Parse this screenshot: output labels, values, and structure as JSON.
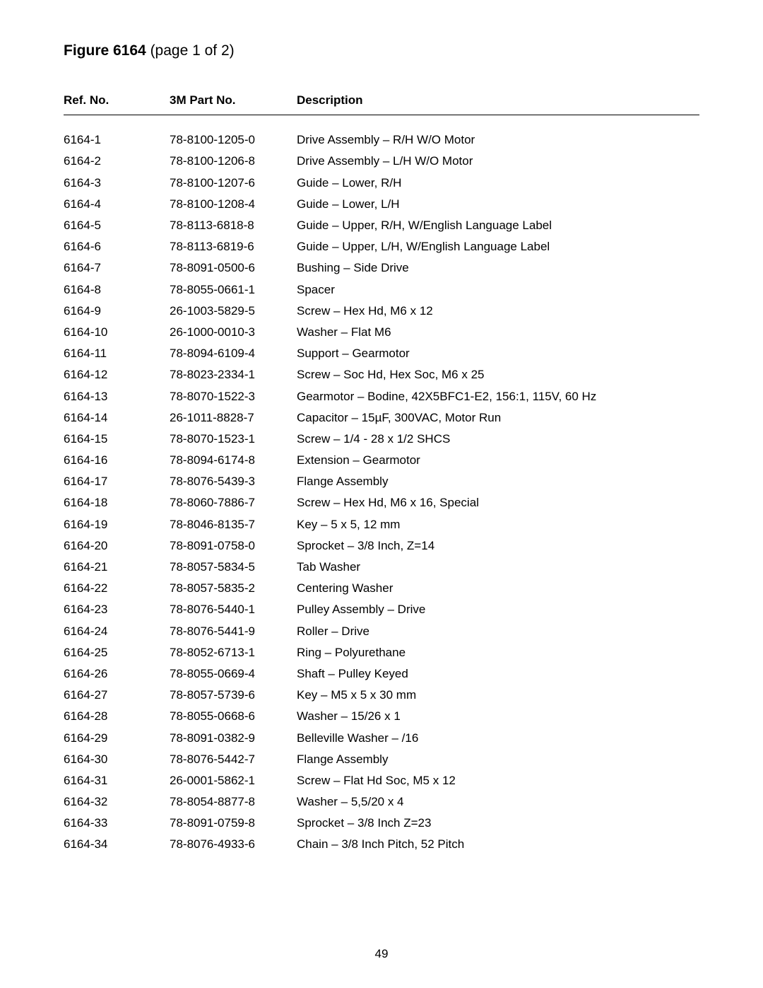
{
  "title": {
    "bold": "Figure 6164",
    "rest": " (page 1 of 2)"
  },
  "columns": {
    "ref": "Ref. No.",
    "part": "3M Part No.",
    "desc": "Description"
  },
  "rows": [
    {
      "ref": "6164-1",
      "part": "78-8100-1205-0",
      "desc": "Drive Assembly – R/H W/O Motor"
    },
    {
      "ref": "6164-2",
      "part": "78-8100-1206-8",
      "desc": "Drive Assembly – L/H W/O Motor"
    },
    {
      "ref": "6164-3",
      "part": "78-8100-1207-6",
      "desc": "Guide – Lower, R/H"
    },
    {
      "ref": "6164-4",
      "part": "78-8100-1208-4",
      "desc": "Guide – Lower, L/H"
    },
    {
      "ref": "6164-5",
      "part": "78-8113-6818-8",
      "desc": "Guide – Upper, R/H, W/English Language Label"
    },
    {
      "ref": "6164-6",
      "part": "78-8113-6819-6",
      "desc": "Guide – Upper, L/H, W/English Language Label"
    },
    {
      "ref": "6164-7",
      "part": "78-8091-0500-6",
      "desc": "Bushing – Side Drive"
    },
    {
      "ref": "6164-8",
      "part": "78-8055-0661-1",
      "desc": "Spacer"
    },
    {
      "ref": "6164-9",
      "part": "26-1003-5829-5",
      "desc": "Screw – Hex Hd, M6 x 12"
    },
    {
      "ref": "6164-10",
      "part": "26-1000-0010-3",
      "desc": "Washer – Flat M6"
    },
    {
      "ref": "6164-11",
      "part": "78-8094-6109-4",
      "desc": "Support – Gearmotor"
    },
    {
      "ref": "6164-12",
      "part": "78-8023-2334-1",
      "desc": "Screw – Soc Hd, Hex Soc, M6 x 25"
    },
    {
      "ref": "6164-13",
      "part": "78-8070-1522-3",
      "desc": "Gearmotor – Bodine, 42X5BFC1-E2, 156:1, 115V, 60 Hz"
    },
    {
      "ref": "6164-14",
      "part": "26-1011-8828-7",
      "desc": "Capacitor – 15µF, 300VAC, Motor Run"
    },
    {
      "ref": "6164-15",
      "part": "78-8070-1523-1",
      "desc": "Screw – 1/4 - 28 x 1/2 SHCS"
    },
    {
      "ref": "6164-16",
      "part": "78-8094-6174-8",
      "desc": "Extension – Gearmotor"
    },
    {
      "ref": "6164-17",
      "part": "78-8076-5439-3",
      "desc": "Flange Assembly"
    },
    {
      "ref": "6164-18",
      "part": "78-8060-7886-7",
      "desc": "Screw – Hex Hd, M6 x 16, Special"
    },
    {
      "ref": "6164-19",
      "part": "78-8046-8135-7",
      "desc": "Key – 5 x 5, 12 mm"
    },
    {
      "ref": "6164-20",
      "part": "78-8091-0758-0",
      "desc": "Sprocket – 3/8 Inch, Z=14"
    },
    {
      "ref": "6164-21",
      "part": "78-8057-5834-5",
      "desc": "Tab Washer"
    },
    {
      "ref": "6164-22",
      "part": "78-8057-5835-2",
      "desc": "Centering Washer"
    },
    {
      "ref": "6164-23",
      "part": "78-8076-5440-1",
      "desc": "Pulley Assembly – Drive"
    },
    {
      "ref": "6164-24",
      "part": "78-8076-5441-9",
      "desc": "Roller – Drive"
    },
    {
      "ref": "6164-25",
      "part": "78-8052-6713-1",
      "desc": "Ring – Polyurethane"
    },
    {
      "ref": "6164-26",
      "part": "78-8055-0669-4",
      "desc": "Shaft – Pulley Keyed"
    },
    {
      "ref": "6164-27",
      "part": "78-8057-5739-6",
      "desc": "Key – M5 x 5 x 30 mm"
    },
    {
      "ref": "6164-28",
      "part": "78-8055-0668-6",
      "desc": "Washer – 15/26 x 1"
    },
    {
      "ref": "6164-29",
      "part": "78-8091-0382-9",
      "desc": "Belleville Washer – /16"
    },
    {
      "ref": "6164-30",
      "part": "78-8076-5442-7",
      "desc": "Flange Assembly"
    },
    {
      "ref": "6164-31",
      "part": "26-0001-5862-1",
      "desc": "Screw – Flat Hd Soc, M5 x 12"
    },
    {
      "ref": "6164-32",
      "part": "78-8054-8877-8",
      "desc": "Washer – 5,5/20 x 4"
    },
    {
      "ref": "6164-33",
      "part": "78-8091-0759-8",
      "desc": "Sprocket – 3/8 Inch Z=23"
    },
    {
      "ref": "6164-34",
      "part": "78-8076-4933-6",
      "desc": "Chain – 3/8 Inch Pitch, 52 Pitch"
    }
  ],
  "page_number": "49"
}
